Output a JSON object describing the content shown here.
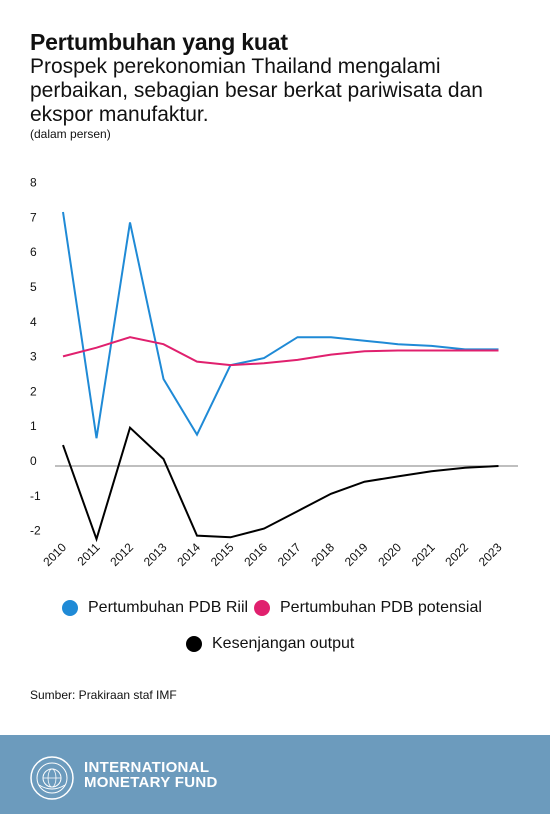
{
  "header": {
    "title": "Pertumbuhan yang kuat",
    "subtitle": "Prospek perekonomian Thailand mengalami perbaikan, sebagian besar berkat pariwisata dan ekspor manufaktur.",
    "units": "(dalam persen)"
  },
  "chart_data": {
    "type": "line",
    "x": [
      "2010",
      "2011",
      "2012",
      "2013",
      "2014",
      "2015",
      "2016",
      "2017",
      "2018",
      "2019",
      "2020",
      "2021",
      "2022",
      "2023"
    ],
    "ylim": [
      -2,
      8
    ],
    "yticks": [
      "8",
      "7",
      "6",
      "5",
      "4",
      "3",
      "2",
      "1",
      "0",
      "-1",
      "-2"
    ],
    "grid": false,
    "legend_position": "bottom",
    "series": [
      {
        "name": "Pertumbuhan PDB Riil",
        "color": "#1f8ad6",
        "values": [
          7.3,
          0.8,
          7.0,
          2.5,
          0.9,
          2.9,
          3.1,
          3.7,
          3.7,
          3.6,
          3.5,
          3.45,
          3.35,
          3.35
        ]
      },
      {
        "name": "Pertumbuhan PDB potensial",
        "color": "#e0206e",
        "values": [
          3.15,
          3.4,
          3.7,
          3.5,
          3.0,
          2.9,
          2.95,
          3.05,
          3.2,
          3.3,
          3.32,
          3.32,
          3.32,
          3.32
        ]
      },
      {
        "name": "Kesenjangan output",
        "color": "#000000",
        "values": [
          0.6,
          -2.1,
          1.1,
          0.2,
          -2.0,
          -2.05,
          -1.8,
          -1.3,
          -0.8,
          -0.45,
          -0.3,
          -0.15,
          -0.05,
          0.0
        ]
      }
    ]
  },
  "legend": {
    "real_gdp": "Pertumbuhan PDB Riil",
    "potential_gdp": "Pertumbuhan PDB potensial",
    "output_gap": "Kesenjangan output"
  },
  "source": "Sumber: Prakiraan staf IMF",
  "footer": {
    "org_line1": "INTERNATIONAL",
    "org_line2": "MONETARY FUND",
    "bg_color": "#6c9bbd"
  }
}
